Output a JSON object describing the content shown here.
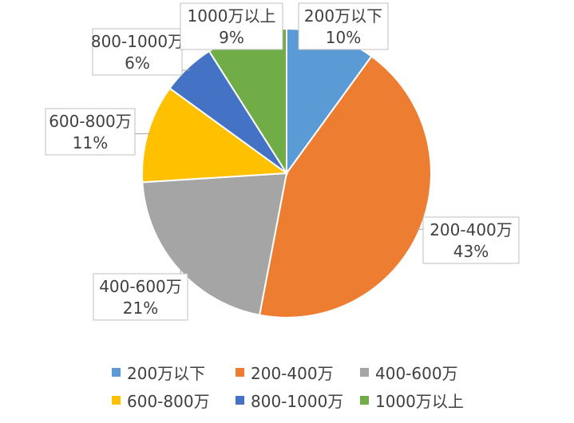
{
  "chart_data": {
    "type": "pie",
    "title": "",
    "slices": [
      {
        "label": "200万以下",
        "value": 10,
        "value_label": "10%",
        "color": "#5B9BD5"
      },
      {
        "label": "200-400万",
        "value": 43,
        "value_label": "43%",
        "color": "#ED7D31"
      },
      {
        "label": "400-600万",
        "value": 21,
        "value_label": "21%",
        "color": "#A5A5A5"
      },
      {
        "label": "600-800万",
        "value": 11,
        "value_label": "11%",
        "color": "#FFC000"
      },
      {
        "label": "800-1000万",
        "value": 6,
        "value_label": "6%",
        "color": "#4472C4"
      },
      {
        "label": "1000万以上",
        "value": 9,
        "value_label": "9%",
        "color": "#70AD47"
      }
    ],
    "legend_position": "bottom"
  }
}
